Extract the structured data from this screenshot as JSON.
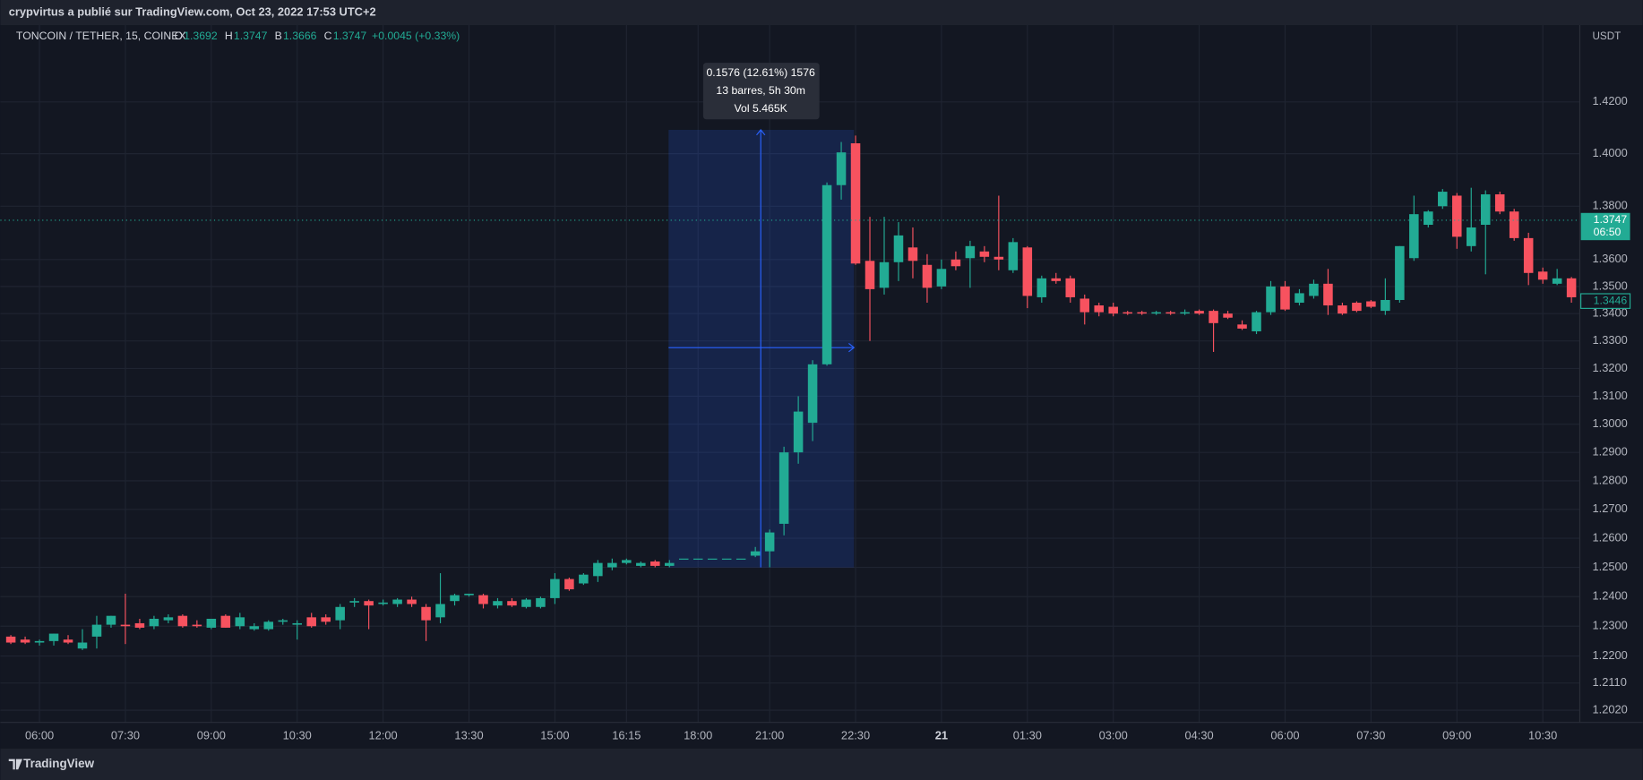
{
  "header": {
    "published": "crypvirtus a publié sur TradingView.com, Oct 23, 2022 17:53 UTC+2"
  },
  "chart_data": {
    "type": "candlestick",
    "symbol": "TONCOIN / TETHER, 15, COINEX",
    "legend": [
      {
        "label": "O",
        "value": 1.3692
      },
      {
        "label": "H",
        "value": 1.3747
      },
      {
        "label": "B",
        "value": 1.3666
      },
      {
        "label": "C",
        "value": 1.3747
      }
    ],
    "change": "+0.0045 (+0.33%)",
    "currency": "USDT",
    "up_color": "#22ab94",
    "down_color": "#f7525f",
    "log": true,
    "grid": true,
    "ylim": [
      1.198,
      1.4502
    ],
    "yticks": [
      {
        "value": 1.202,
        "label": "1.2020"
      },
      {
        "value": 1.211,
        "label": "1.2110"
      },
      {
        "value": 1.22,
        "label": "1.2200"
      },
      {
        "value": 1.23,
        "label": "1.2300"
      },
      {
        "value": 1.24,
        "label": "1.2400"
      },
      {
        "value": 1.25,
        "label": "1.2500"
      },
      {
        "value": 1.26,
        "label": "1.2600"
      },
      {
        "value": 1.27,
        "label": "1.2700"
      },
      {
        "value": 1.28,
        "label": "1.2800"
      },
      {
        "value": 1.29,
        "label": "1.2900"
      },
      {
        "value": 1.3,
        "label": "1.3000"
      },
      {
        "value": 1.31,
        "label": "1.3100"
      },
      {
        "value": 1.32,
        "label": "1.3200"
      },
      {
        "value": 1.33,
        "label": "1.3300"
      },
      {
        "value": 1.34,
        "label": "1.3400"
      },
      {
        "value": 1.35,
        "label": "1.3500"
      },
      {
        "value": 1.36,
        "label": "1.3600"
      },
      {
        "value": 1.38,
        "label": "1.3800"
      },
      {
        "value": 1.4,
        "label": "1.4000"
      },
      {
        "value": 1.42,
        "label": "1.4200"
      }
    ],
    "categories": [
      null,
      null,
      "06:00",
      null,
      null,
      null,
      null,
      null,
      "07:30",
      null,
      null,
      null,
      null,
      null,
      "09:00",
      null,
      null,
      null,
      null,
      null,
      "10:30",
      null,
      null,
      null,
      null,
      null,
      "12:00",
      null,
      null,
      null,
      null,
      null,
      "13:30",
      null,
      null,
      null,
      null,
      null,
      "15:00",
      null,
      null,
      null,
      null,
      "16:15",
      null,
      null,
      null,
      null,
      "18:00",
      null,
      null,
      null,
      null,
      "21:00",
      null,
      null,
      null,
      null,
      null,
      "22:30",
      null,
      null,
      null,
      null,
      null,
      "21",
      null,
      null,
      null,
      null,
      null,
      "01:30",
      null,
      null,
      null,
      null,
      null,
      "03:00",
      null,
      null,
      null,
      null,
      null,
      "04:30",
      null,
      null,
      null,
      null,
      null,
      "06:00",
      null,
      null,
      null,
      null,
      null,
      "07:30",
      null,
      null,
      null,
      null,
      null,
      "09:00",
      null,
      null,
      null,
      null,
      null,
      "10:30",
      null,
      null
    ],
    "open": [
      1.2265,
      1.2255,
      1.2245,
      1.225,
      1.2255,
      1.2225,
      1.2265,
      1.2305,
      1.2305,
      1.231,
      1.23,
      1.232,
      1.2335,
      1.2305,
      1.2295,
      1.2335,
      1.23,
      1.229,
      1.229,
      1.2315,
      1.2305,
      1.233,
      1.233,
      1.232,
      1.238,
      1.2385,
      1.2375,
      1.2375,
      1.239,
      1.2365,
      1.233,
      1.2385,
      1.2405,
      1.2405,
      1.237,
      1.2385,
      1.2365,
      1.2365,
      1.2395,
      1.246,
      1.2445,
      1.247,
      1.25,
      1.2515,
      1.2505,
      1.252,
      1.2505,
      1.253,
      1.253,
      1.253,
      1.253,
      1.253,
      1.254,
      1.2555,
      1.265,
      1.29,
      1.3005,
      1.3215,
      1.388,
      1.404,
      1.3595,
      1.3495,
      1.359,
      1.3645,
      1.358,
      1.35,
      1.36,
      1.3605,
      1.363,
      1.361,
      1.356,
      1.3645,
      1.346,
      1.353,
      1.353,
      1.3455,
      1.343,
      1.3425,
      1.3405,
      1.3405,
      1.34,
      1.3405,
      1.34,
      1.341,
      1.341,
      1.34,
      1.336,
      1.3335,
      1.3405,
      1.35,
      1.344,
      1.3465,
      1.351,
      1.343,
      1.344,
      1.3445,
      1.341,
      1.345,
      1.3605,
      1.373,
      1.38,
      1.384,
      1.365,
      1.373,
      1.3845,
      1.378,
      1.368,
      1.3555,
      1.351,
      1.353
    ],
    "high": [
      1.227,
      1.2265,
      1.2255,
      1.2275,
      1.227,
      1.229,
      1.2335,
      1.2335,
      1.241,
      1.2325,
      1.2335,
      1.234,
      1.234,
      1.232,
      1.2325,
      1.234,
      1.2345,
      1.231,
      1.232,
      1.2325,
      1.232,
      1.2345,
      1.234,
      1.2375,
      1.2395,
      1.239,
      1.239,
      1.2395,
      1.24,
      1.2375,
      1.248,
      1.241,
      1.241,
      1.241,
      1.2395,
      1.2395,
      1.2395,
      1.24,
      1.248,
      1.2465,
      1.248,
      1.2525,
      1.253,
      1.253,
      1.252,
      1.2525,
      1.2525,
      1.253,
      1.253,
      1.253,
      1.253,
      1.253,
      1.257,
      1.263,
      1.292,
      1.31,
      1.323,
      1.389,
      1.4045,
      1.407,
      1.376,
      1.376,
      1.374,
      1.372,
      1.362,
      1.36,
      1.363,
      1.367,
      1.365,
      1.384,
      1.368,
      1.365,
      1.354,
      1.355,
      1.354,
      1.347,
      1.344,
      1.344,
      1.341,
      1.341,
      1.341,
      1.341,
      1.3415,
      1.3415,
      1.3415,
      1.341,
      1.3375,
      1.341,
      1.352,
      1.352,
      1.349,
      1.3525,
      1.3565,
      1.344,
      1.3445,
      1.345,
      1.353,
      1.365,
      1.384,
      1.3785,
      1.3865,
      1.385,
      1.387,
      1.386,
      1.3855,
      1.379,
      1.37,
      1.357,
      1.3565,
      1.3535
    ],
    "low": [
      1.224,
      1.224,
      1.2235,
      1.2235,
      1.224,
      1.222,
      1.2225,
      1.2295,
      1.224,
      1.229,
      1.229,
      1.231,
      1.2295,
      1.2295,
      1.229,
      1.2295,
      1.229,
      1.2285,
      1.2285,
      1.2305,
      1.2255,
      1.2295,
      1.2305,
      1.229,
      1.2365,
      1.229,
      1.237,
      1.2365,
      1.2365,
      1.225,
      1.231,
      1.237,
      1.24,
      1.236,
      1.236,
      1.2365,
      1.236,
      1.236,
      1.2375,
      1.242,
      1.244,
      1.245,
      1.249,
      1.251,
      1.25,
      1.25,
      1.25,
      1.253,
      1.253,
      1.253,
      1.253,
      1.253,
      1.2535,
      1.25,
      1.261,
      1.286,
      1.294,
      1.321,
      1.3825,
      1.358,
      1.33,
      1.347,
      1.352,
      1.353,
      1.344,
      1.349,
      1.356,
      1.3495,
      1.359,
      1.356,
      1.355,
      1.342,
      1.344,
      1.351,
      1.344,
      1.336,
      1.339,
      1.339,
      1.3395,
      1.3395,
      1.3395,
      1.3395,
      1.3395,
      1.3395,
      1.326,
      1.338,
      1.334,
      1.3325,
      1.3395,
      1.341,
      1.343,
      1.3455,
      1.3395,
      1.3395,
      1.3405,
      1.342,
      1.3395,
      1.344,
      1.3595,
      1.372,
      1.379,
      1.364,
      1.363,
      1.3545,
      1.377,
      1.367,
      1.3505,
      1.351,
      1.3505,
      1.344
    ],
    "close": [
      1.2245,
      1.2245,
      1.225,
      1.2275,
      1.2245,
      1.2245,
      1.2305,
      1.2335,
      1.23,
      1.2295,
      1.2325,
      1.233,
      1.23,
      1.23,
      1.2325,
      1.2295,
      1.233,
      1.23,
      1.2315,
      1.232,
      1.231,
      1.23,
      1.2315,
      1.2365,
      1.2385,
      1.237,
      1.238,
      1.239,
      1.2375,
      1.232,
      1.2375,
      1.2405,
      1.241,
      1.2375,
      1.2385,
      1.237,
      1.239,
      1.2395,
      1.246,
      1.2425,
      1.2475,
      1.2515,
      1.2515,
      1.2525,
      1.2515,
      1.2505,
      1.2515,
      1.253,
      1.253,
      1.253,
      1.253,
      1.253,
      1.2555,
      1.262,
      1.29,
      1.3045,
      1.3215,
      1.388,
      1.4005,
      1.3585,
      1.349,
      1.359,
      1.369,
      1.3595,
      1.3495,
      1.3565,
      1.3575,
      1.365,
      1.361,
      1.36,
      1.3665,
      1.3465,
      1.353,
      1.352,
      1.346,
      1.3405,
      1.3405,
      1.34,
      1.34,
      1.34,
      1.3405,
      1.34,
      1.3405,
      1.34,
      1.3365,
      1.3385,
      1.3345,
      1.3405,
      1.35,
      1.3415,
      1.3475,
      1.351,
      1.343,
      1.34,
      1.341,
      1.3425,
      1.345,
      1.365,
      1.377,
      1.378,
      1.3855,
      1.3685,
      1.372,
      1.3845,
      1.378,
      1.368,
      1.355,
      1.3525,
      1.353,
      1.346
    ],
    "last_price": 1.3747,
    "countdown": "06:50",
    "marker_price": 1.3446,
    "measure": [
      "0.1576 (12.61%) 1576",
      "13 barres, 5h 30m",
      "Vol 5.465K"
    ],
    "footer": "TradingView"
  }
}
